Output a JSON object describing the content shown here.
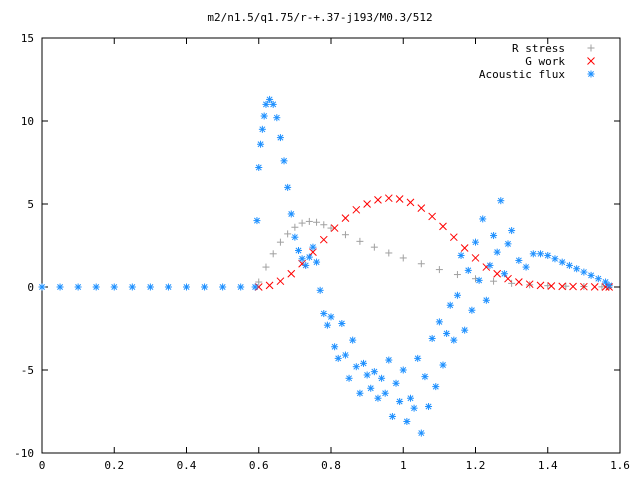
{
  "chart_data": {
    "type": "scatter",
    "title": "m2/n1.5/q1.75/r-+.37-j193/M0.3/512",
    "xlabel": "",
    "ylabel": "",
    "xlim": [
      0,
      1.6
    ],
    "ylim": [
      -10,
      15
    ],
    "x_ticks": [
      "0",
      "0.2",
      "0.4",
      "0.6",
      "0.8",
      "1",
      "1.2",
      "1.4",
      "1.6"
    ],
    "y_ticks": [
      "-10",
      "-5",
      "0",
      "5",
      "10",
      "15"
    ],
    "grid": false,
    "legend_position": "top-right",
    "series": [
      {
        "name": "R stress",
        "color": "#a0a0a0",
        "marker": "plus",
        "x": [
          0.6,
          0.62,
          0.64,
          0.66,
          0.68,
          0.7,
          0.72,
          0.74,
          0.76,
          0.78,
          0.8,
          0.84,
          0.88,
          0.92,
          0.96,
          1.0,
          1.05,
          1.1,
          1.15,
          1.2,
          1.25,
          1.3,
          1.35,
          1.4,
          1.45,
          1.5,
          1.55,
          1.57
        ],
        "y": [
          0.3,
          1.2,
          2.0,
          2.7,
          3.2,
          3.6,
          3.85,
          3.95,
          3.9,
          3.75,
          3.55,
          3.15,
          2.75,
          2.4,
          2.05,
          1.75,
          1.4,
          1.05,
          0.75,
          0.5,
          0.35,
          0.22,
          0.13,
          0.08,
          0.05,
          0.03,
          0.01,
          0.0
        ]
      },
      {
        "name": "G work",
        "color": "#ff0000",
        "marker": "cross",
        "x": [
          0.6,
          0.63,
          0.66,
          0.69,
          0.72,
          0.75,
          0.78,
          0.81,
          0.84,
          0.87,
          0.9,
          0.93,
          0.96,
          0.99,
          1.02,
          1.05,
          1.08,
          1.11,
          1.14,
          1.17,
          1.2,
          1.23,
          1.26,
          1.29,
          1.32,
          1.35,
          1.38,
          1.41,
          1.44,
          1.47,
          1.5,
          1.53,
          1.56,
          1.57
        ],
        "y": [
          0.0,
          0.1,
          0.35,
          0.8,
          1.4,
          2.1,
          2.85,
          3.55,
          4.15,
          4.65,
          5.0,
          5.25,
          5.35,
          5.3,
          5.1,
          4.75,
          4.25,
          3.65,
          3.0,
          2.35,
          1.75,
          1.2,
          0.8,
          0.5,
          0.3,
          0.17,
          0.1,
          0.06,
          0.04,
          0.03,
          0.02,
          0.01,
          0.0,
          0.0
        ]
      },
      {
        "name": "Acoustic flux",
        "color": "#1e90ff",
        "marker": "star",
        "x": [
          0.0,
          0.05,
          0.1,
          0.15,
          0.2,
          0.25,
          0.3,
          0.35,
          0.4,
          0.45,
          0.5,
          0.55,
          0.59,
          0.595,
          0.6,
          0.605,
          0.61,
          0.615,
          0.62,
          0.63,
          0.64,
          0.65,
          0.66,
          0.67,
          0.68,
          0.69,
          0.7,
          0.71,
          0.72,
          0.73,
          0.74,
          0.75,
          0.76,
          0.77,
          0.78,
          0.79,
          0.8,
          0.81,
          0.82,
          0.83,
          0.84,
          0.85,
          0.86,
          0.87,
          0.88,
          0.89,
          0.9,
          0.91,
          0.92,
          0.93,
          0.94,
          0.95,
          0.96,
          0.97,
          0.98,
          0.99,
          1.0,
          1.01,
          1.02,
          1.03,
          1.04,
          1.05,
          1.06,
          1.07,
          1.08,
          1.09,
          1.1,
          1.11,
          1.12,
          1.13,
          1.14,
          1.15,
          1.16,
          1.17,
          1.18,
          1.19,
          1.2,
          1.21,
          1.22,
          1.23,
          1.24,
          1.25,
          1.26,
          1.27,
          1.28,
          1.29,
          1.3,
          1.32,
          1.34,
          1.36,
          1.38,
          1.4,
          1.42,
          1.44,
          1.46,
          1.48,
          1.5,
          1.52,
          1.54,
          1.56,
          1.57
        ],
        "y": [
          0.0,
          0.0,
          0.0,
          0.0,
          0.0,
          0.0,
          0.0,
          0.0,
          0.0,
          0.0,
          0.0,
          0.0,
          0.0,
          4.0,
          7.2,
          8.6,
          9.5,
          10.3,
          11.0,
          11.3,
          11.0,
          10.2,
          9.0,
          7.6,
          6.0,
          4.4,
          3.0,
          2.2,
          1.7,
          1.3,
          1.8,
          2.4,
          1.5,
          -0.2,
          -1.6,
          -2.3,
          -1.8,
          -3.6,
          -4.3,
          -2.2,
          -4.1,
          -5.5,
          -3.2,
          -4.8,
          -6.4,
          -4.6,
          -5.3,
          -6.1,
          -5.1,
          -6.7,
          -5.5,
          -6.4,
          -4.4,
          -7.8,
          -5.8,
          -6.9,
          -5.0,
          -8.1,
          -6.7,
          -7.3,
          -4.3,
          -8.8,
          -5.4,
          -7.2,
          -3.1,
          -6.0,
          -2.1,
          -4.7,
          -2.8,
          -1.1,
          -3.2,
          -0.5,
          1.9,
          -2.6,
          1.0,
          -1.4,
          2.7,
          0.4,
          4.1,
          -0.8,
          1.3,
          3.1,
          2.1,
          5.2,
          0.8,
          2.6,
          3.4,
          1.6,
          1.2,
          2.0,
          2.0,
          1.9,
          1.7,
          1.5,
          1.3,
          1.1,
          0.9,
          0.7,
          0.5,
          0.3,
          0.1
        ]
      }
    ]
  }
}
